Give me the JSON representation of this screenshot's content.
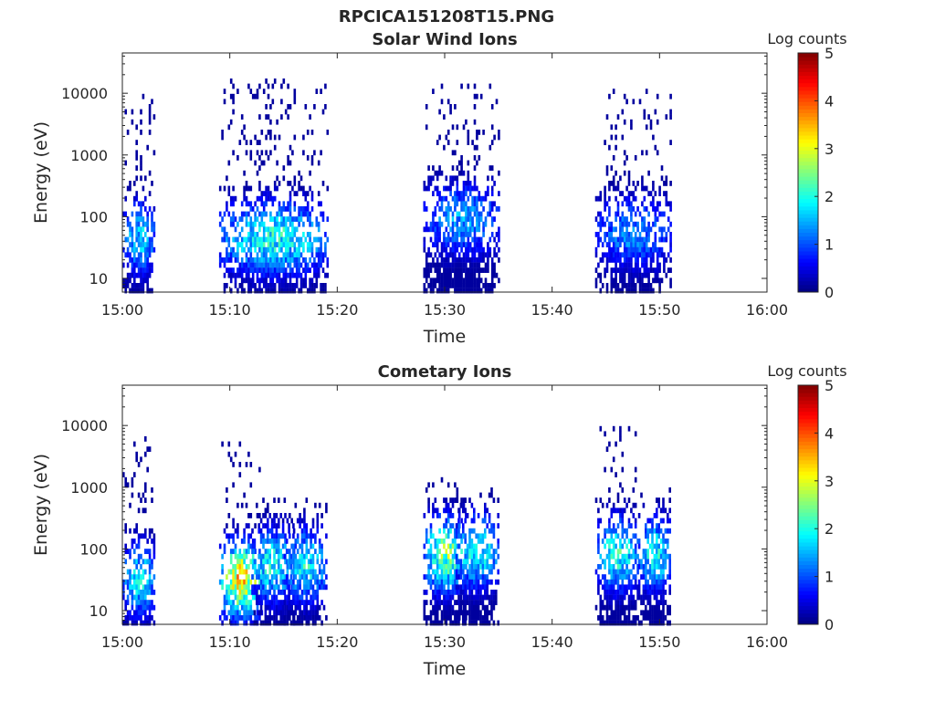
{
  "figure_title": "RPCICA151208T15.PNG",
  "chart_data": [
    {
      "type": "heatmap",
      "title": "Solar Wind Ions",
      "xlabel": "Time",
      "ylabel": "Energy (eV)",
      "x_ticks": [
        "15:00",
        "15:10",
        "15:20",
        "15:30",
        "15:40",
        "15:50",
        "16:00"
      ],
      "xlim": [
        "15:00",
        "16:00"
      ],
      "y_scale": "log",
      "y_ticks": [
        "10",
        "100",
        "1000",
        "10000"
      ],
      "ylim": [
        6,
        45000
      ],
      "colorbar": {
        "label": "Log counts",
        "range": [
          0,
          5
        ],
        "ticks": [
          "0",
          "1",
          "2",
          "3",
          "4",
          "5"
        ],
        "colormap": "jet"
      },
      "bursts": [
        {
          "start": "15:00",
          "end": "15:03",
          "peak_energy_eV": 50,
          "peak_log_counts": 1.8,
          "max_energy_eV": 10000
        },
        {
          "start": "15:09",
          "end": "15:19",
          "peak_energy_eV": 50,
          "peak_log_counts": 2.1,
          "max_energy_eV": 20000
        },
        {
          "start": "15:28",
          "end": "15:35",
          "peak_energy_eV": 100,
          "peak_log_counts": 1.5,
          "max_energy_eV": 15000
        },
        {
          "start": "15:44",
          "end": "15:51",
          "peak_energy_eV": 60,
          "peak_log_counts": 1.4,
          "max_energy_eV": 12000
        }
      ]
    },
    {
      "type": "heatmap",
      "title": "Cometary Ions",
      "xlabel": "Time",
      "ylabel": "Energy (eV)",
      "x_ticks": [
        "15:00",
        "15:10",
        "15:20",
        "15:30",
        "15:40",
        "15:50",
        "16:00"
      ],
      "xlim": [
        "15:00",
        "16:00"
      ],
      "y_scale": "log",
      "y_ticks": [
        "10",
        "100",
        "1000",
        "10000"
      ],
      "ylim": [
        6,
        45000
      ],
      "colorbar": {
        "label": "Log counts",
        "range": [
          0,
          5
        ],
        "ticks": [
          "0",
          "1",
          "2",
          "3",
          "4",
          "5"
        ],
        "colormap": "jet"
      },
      "bursts": [
        {
          "start": "15:00",
          "end": "15:03",
          "peak_energy_eV": 35,
          "peak_log_counts": 2.0,
          "max_energy_eV": 8000
        },
        {
          "start": "15:09",
          "end": "15:13",
          "peak_energy_eV": 35,
          "peak_log_counts": 3.4,
          "max_energy_eV": 6000
        },
        {
          "start": "15:12",
          "end": "15:16",
          "peak_energy_eV": 60,
          "peak_log_counts": 2.1,
          "max_energy_eV": 800
        },
        {
          "start": "15:15",
          "end": "15:19",
          "peak_energy_eV": 60,
          "peak_log_counts": 2.0,
          "max_energy_eV": 800
        },
        {
          "start": "15:28",
          "end": "15:32",
          "peak_energy_eV": 90,
          "peak_log_counts": 2.7,
          "max_energy_eV": 1500
        },
        {
          "start": "15:31",
          "end": "15:35",
          "peak_energy_eV": 100,
          "peak_log_counts": 2.1,
          "max_energy_eV": 1200
        },
        {
          "start": "15:44",
          "end": "15:48",
          "peak_energy_eV": 90,
          "peak_log_counts": 2.2,
          "max_energy_eV": 11000
        },
        {
          "start": "15:48",
          "end": "15:51",
          "peak_energy_eV": 90,
          "peak_log_counts": 2.1,
          "max_energy_eV": 1200
        }
      ]
    }
  ]
}
